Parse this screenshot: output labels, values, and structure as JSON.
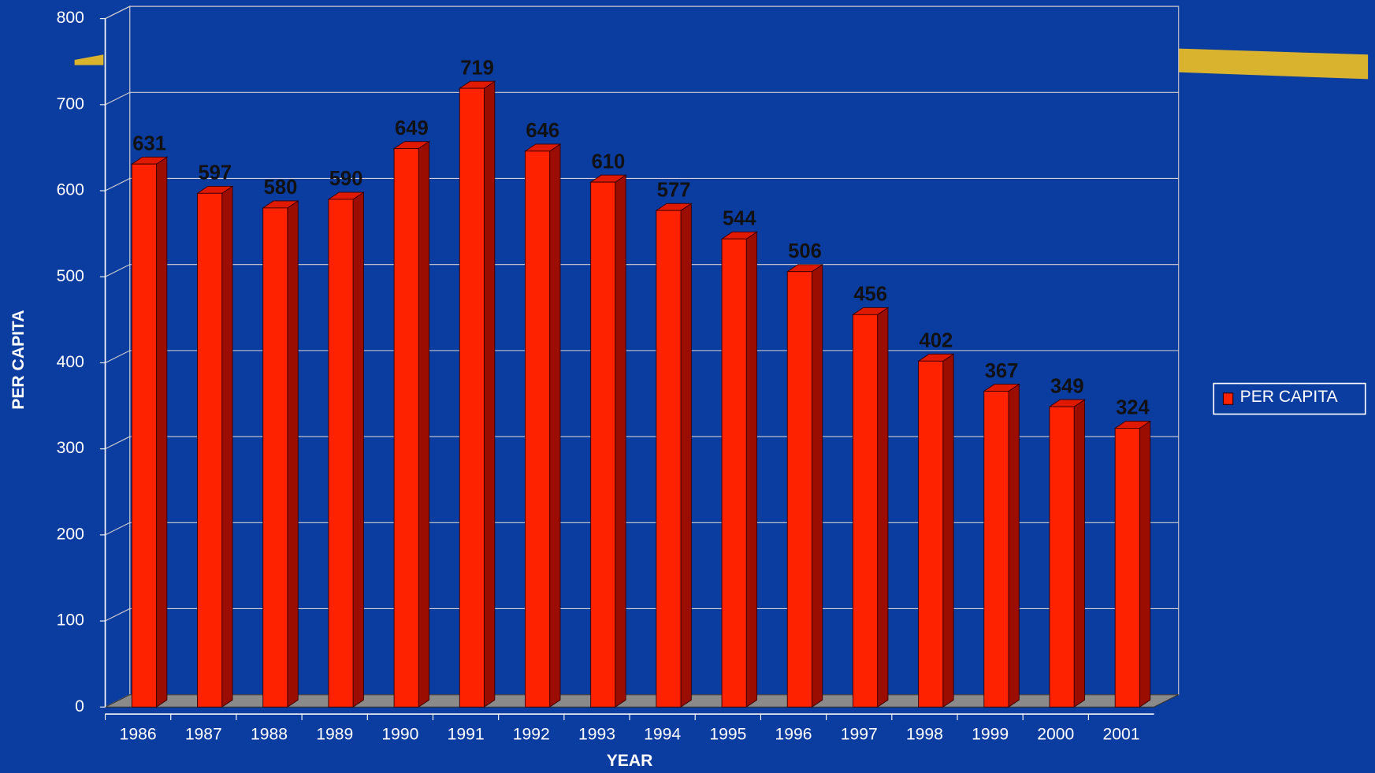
{
  "chart_data": {
    "type": "bar",
    "x_label": "YEAR",
    "y_label": "PER CAPITA",
    "categories": [
      "1986",
      "1987",
      "1988",
      "1989",
      "1990",
      "1991",
      "1992",
      "1993",
      "1994",
      "1995",
      "1996",
      "1997",
      "1998",
      "1999",
      "2000",
      "2001"
    ],
    "series": [
      {
        "name": "PER CAPITA",
        "color": "#ff2200",
        "values": [
          631,
          597,
          580,
          590,
          649,
          719,
          646,
          610,
          577,
          544,
          506,
          456,
          402,
          367,
          349,
          324
        ]
      }
    ],
    "ylim": [
      0,
      800
    ],
    "yticks": [
      0,
      100,
      200,
      300,
      400,
      500,
      600,
      700,
      800
    ],
    "grid": true,
    "legend": "right"
  }
}
